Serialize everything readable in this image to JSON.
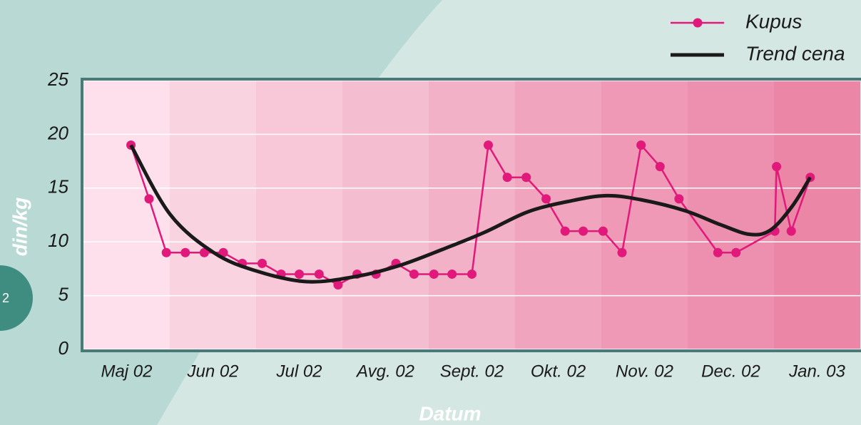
{
  "chart_data": {
    "type": "line",
    "page_number": "2",
    "y_label": "din/kg",
    "x_label": "Datum",
    "xlim": [
      0,
      9
    ],
    "ylim": [
      0,
      25
    ],
    "yticks": [
      0,
      5,
      10,
      15,
      20,
      25
    ],
    "xticks": [
      {
        "value": 0.5,
        "label": "Maj 02"
      },
      {
        "value": 1.5,
        "label": "Jun 02"
      },
      {
        "value": 2.5,
        "label": "Jul 02"
      },
      {
        "value": 3.5,
        "label": "Avg. 02"
      },
      {
        "value": 4.5,
        "label": "Sept. 02"
      },
      {
        "value": 5.5,
        "label": "Okt. 02"
      },
      {
        "value": 6.5,
        "label": "Nov. 02"
      },
      {
        "value": 7.5,
        "label": "Dec. 02"
      },
      {
        "value": 8.5,
        "label": "Jan. 03"
      }
    ],
    "grid": true,
    "legend": "top-right",
    "band_colors": [
      "#fde0ec",
      "#fad3e1",
      "#f8c8d8",
      "#f5bdd0",
      "#f3b1c8",
      "#f0a4be",
      "#ef99b6",
      "#ed8fae",
      "#ec86a7"
    ],
    "series": [
      {
        "name": "Kupus",
        "color": "#e0197a",
        "markers": true,
        "smooth": false,
        "x": [
          0.55,
          0.76,
          0.96,
          1.18,
          1.4,
          1.62,
          1.84,
          2.07,
          2.29,
          2.5,
          2.73,
          2.95,
          3.17,
          3.39,
          3.62,
          3.83,
          4.06,
          4.27,
          4.5,
          4.69,
          4.91,
          5.13,
          5.36,
          5.58,
          5.79,
          6.02,
          6.24,
          6.46,
          6.68,
          6.9,
          7.35,
          7.56,
          8.01,
          8.03,
          8.2,
          8.42
        ],
        "values": [
          19,
          14,
          9,
          9,
          9,
          9,
          8,
          8,
          7,
          7,
          7,
          6,
          7,
          7,
          8,
          7,
          7,
          7,
          7,
          19,
          16,
          16,
          14,
          11,
          11,
          11,
          9,
          19,
          17,
          14,
          9,
          9,
          11,
          17,
          11,
          16
        ]
      },
      {
        "name": "Trend cena",
        "color": "#1a1a1a",
        "markers": false,
        "smooth": true,
        "x": [
          0.55,
          1.0,
          1.51,
          2.0,
          2.59,
          3.17,
          3.66,
          4.16,
          4.65,
          5.15,
          5.64,
          6.06,
          6.47,
          6.97,
          7.38,
          7.72,
          7.96,
          8.21,
          8.42
        ],
        "values": [
          19,
          12.6,
          9,
          7.3,
          6.3,
          6.8,
          7.8,
          9.3,
          10.9,
          12.8,
          13.8,
          14.3,
          13.9,
          12.9,
          11.6,
          10.7,
          11.1,
          13.3,
          16
        ]
      }
    ]
  }
}
